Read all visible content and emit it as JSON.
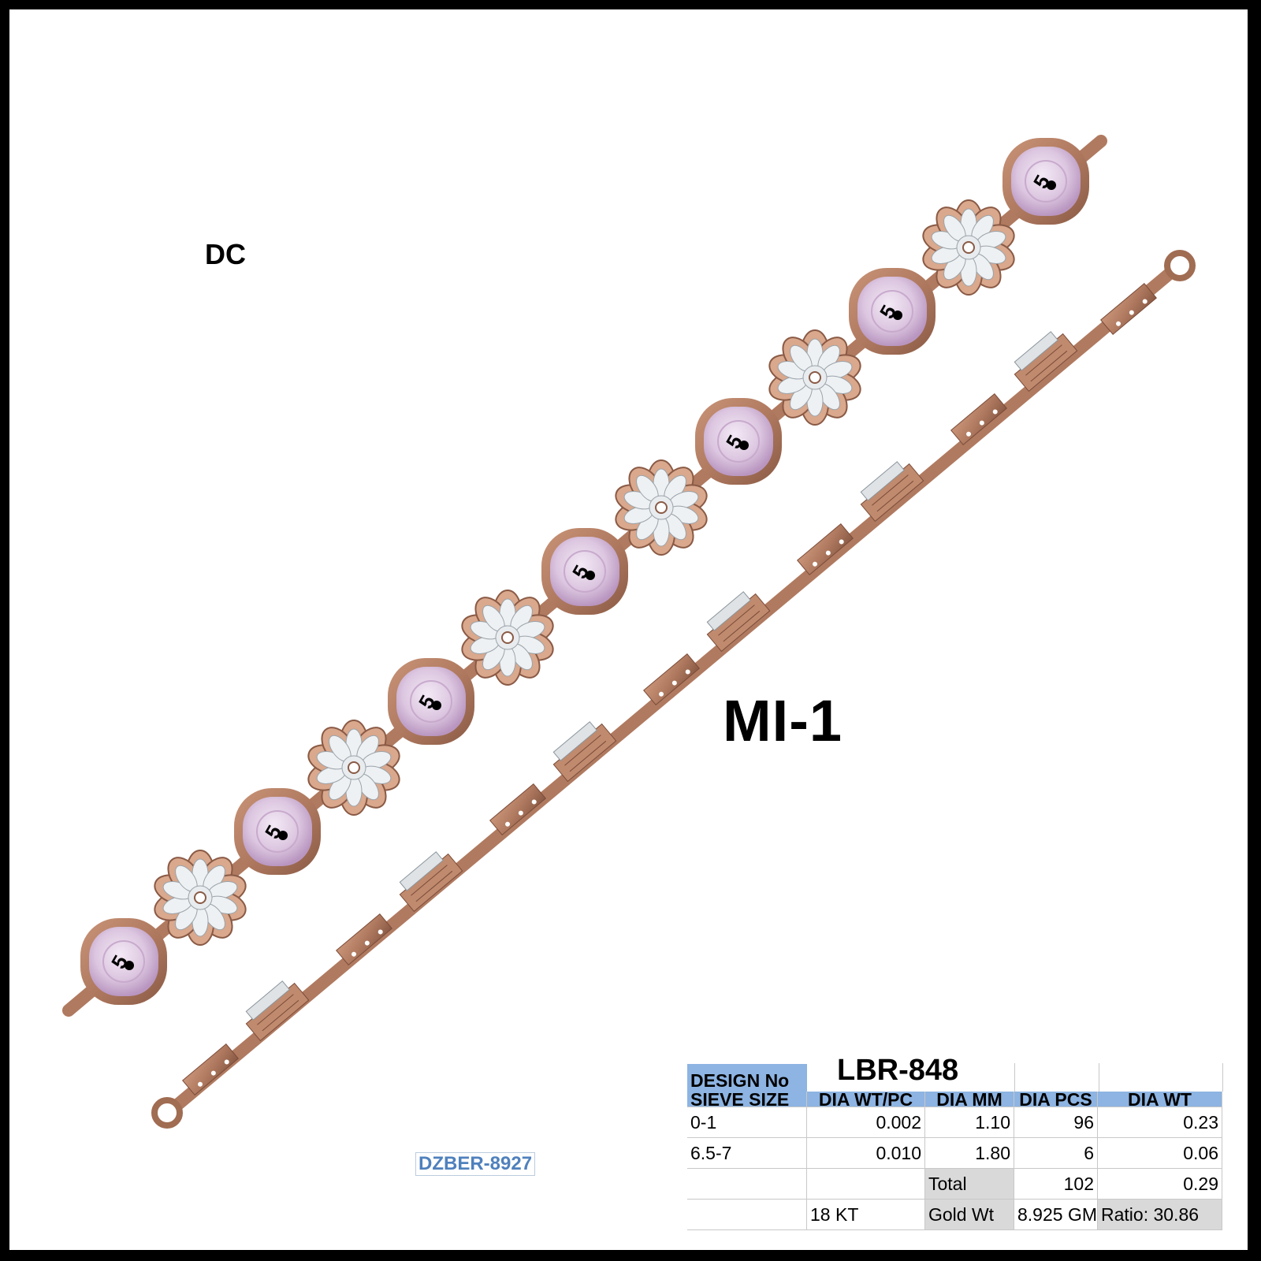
{
  "labels": {
    "dc": "DC",
    "mi": "MI-1",
    "design_code": "DZBER-8927",
    "stone_mark": "5"
  },
  "colors": {
    "metal": "#b07a60",
    "metal_dark": "#8a5a45",
    "stone": "#dcc6e0",
    "diamond": "#e8ecef",
    "header_blue": "#8db4e2",
    "code_blue": "#4f81bd"
  },
  "spec_table": {
    "design_no_label": "DESIGN No",
    "design_no": "LBR-848",
    "headers": [
      "SIEVE SIZE",
      "DIA WT/PC",
      "DIA MM",
      "DIA PCS",
      "DIA WT"
    ],
    "rows": [
      [
        "0-1",
        "0.002",
        "1.10",
        "96",
        "0.23"
      ],
      [
        "6.5-7",
        "0.010",
        "1.80",
        "6",
        "0.06"
      ]
    ],
    "total_label": "Total",
    "total_pcs": "102",
    "total_wt": "0.29",
    "karat": "18 KT",
    "gold_wt_label": "Gold Wt",
    "gold_wt": "8.925 GM",
    "ratio": "Ratio: 30.86"
  }
}
